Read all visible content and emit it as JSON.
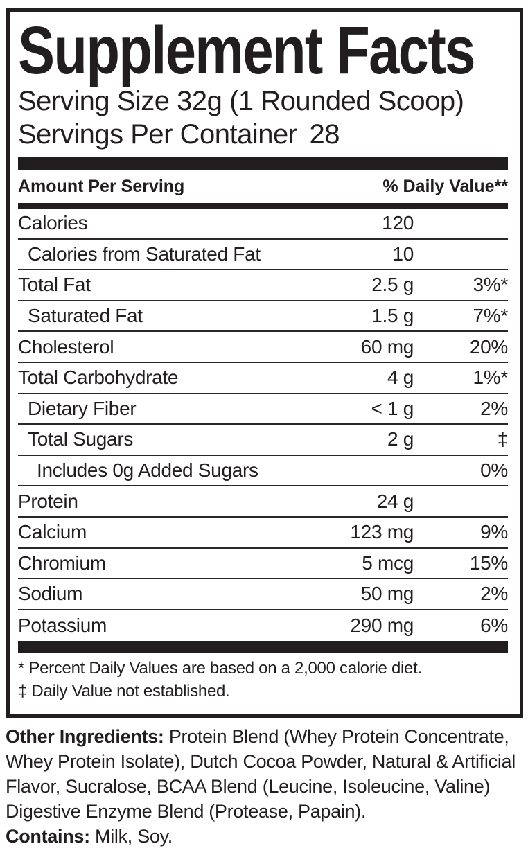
{
  "colors": {
    "text": "#221e1f",
    "background": "#ffffff",
    "divider": "#2b2728"
  },
  "panel": {
    "title": "Supplement Facts",
    "serving_size_line": "Serving Size 32g (1 Rounded Scoop)",
    "servings_label": "Servings Per Container",
    "servings_value": "28",
    "column_headers": {
      "amount": "Amount Per Serving",
      "daily_value": "% Daily Value**"
    },
    "rows": [
      {
        "label": "Calories",
        "amount": "120",
        "dv": "",
        "indent": 0
      },
      {
        "label": "Calories from Saturated Fat",
        "amount": "10",
        "dv": "",
        "indent": 1
      },
      {
        "label": "Total Fat",
        "amount": "2.5 g",
        "dv": "3%*",
        "indent": 0
      },
      {
        "label": "Saturated Fat",
        "amount": "1.5 g",
        "dv": "7%*",
        "indent": 1
      },
      {
        "label": "Cholesterol",
        "amount": "60 mg",
        "dv": "20%",
        "indent": 0
      },
      {
        "label": "Total Carbohydrate",
        "amount": "4 g",
        "dv": "1%*",
        "indent": 0
      },
      {
        "label": "Dietary Fiber",
        "amount": "< 1 g",
        "dv": "2%",
        "indent": 1
      },
      {
        "label": "Total Sugars",
        "amount": "2 g",
        "dv": "‡",
        "indent": 1
      },
      {
        "label": "Includes 0g Added Sugars",
        "amount": "",
        "dv": "0%",
        "indent": 2
      },
      {
        "label": "Protein",
        "amount": "24 g",
        "dv": "",
        "indent": 0
      },
      {
        "label": "Calcium",
        "amount": "123 mg",
        "dv": "9%",
        "indent": 0
      },
      {
        "label": "Chromium",
        "amount": "5 mcg",
        "dv": "15%",
        "indent": 0
      },
      {
        "label": "Sodium",
        "amount": "50 mg",
        "dv": "2%",
        "indent": 0
      },
      {
        "label": "Potassium",
        "amount": "290 mg",
        "dv": "6%",
        "indent": 0
      }
    ],
    "footnotes": [
      "* Percent Daily Values are based on a 2,000 calorie diet.",
      "‡ Daily Value not established."
    ]
  },
  "other_ingredients": {
    "label": "Other Ingredients:",
    "text": "Protein Blend (Whey Protein Concentrate, Whey Protein Isolate), Dutch Cocoa Powder, Natural & Artificial Flavor, Sucralose, BCAA Blend (Leucine, Isoleucine, Valine) Digestive Enzyme Blend (Protease, Papain)."
  },
  "contains": {
    "label": "Contains:",
    "text": "Milk, Soy."
  }
}
